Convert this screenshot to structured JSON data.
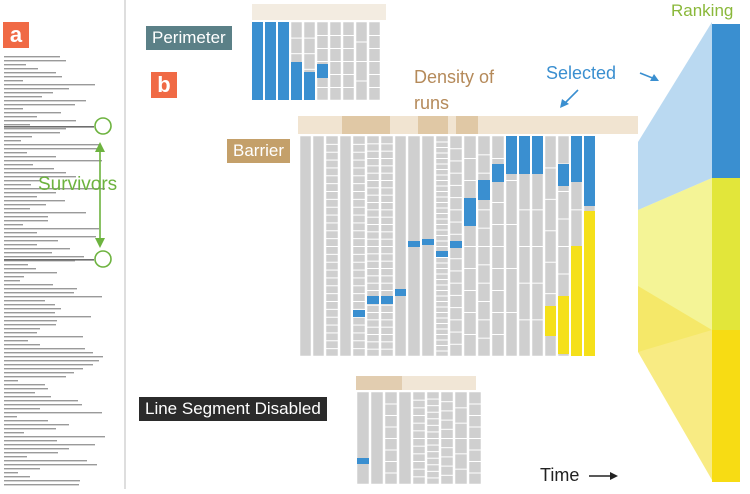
{
  "panel_a": {
    "badge": "a",
    "survivors_label": "Survivors"
  },
  "panel_b": {
    "badge": "b",
    "perimeter_label": "Perimeter",
    "density_label_line1": "Density of",
    "density_label_line2": "runs",
    "selected_label": "Selected",
    "barrier_label": "Barrier",
    "ranking_label": "Ranking",
    "line_segment_label": "Line Segment Disabled",
    "time_label": "Time"
  },
  "colors": {
    "badge": "#f06a45",
    "survivors_green": "#6db33f",
    "selected_blue": "#3a8fd0",
    "density_tan": "#b58a5a",
    "perimeter_tag": "#5b8087",
    "barrier_tag": "#c4a06a",
    "line_segment_tag": "#2b2b2b",
    "ranking_green": "#8ab83a",
    "cell_gray": "#cfcfcf",
    "highlight_blue": "#3a8fd0",
    "highlight_yellow": "#f5e01a",
    "band_blue": "#a9cfee",
    "band_yellow": "#f0ef6a"
  },
  "icons": {
    "time_arrow": "right-arrow-icon",
    "selected_arrows": "pointer-arrow-icon",
    "survivor_markers": "circle-marker-icon"
  }
}
